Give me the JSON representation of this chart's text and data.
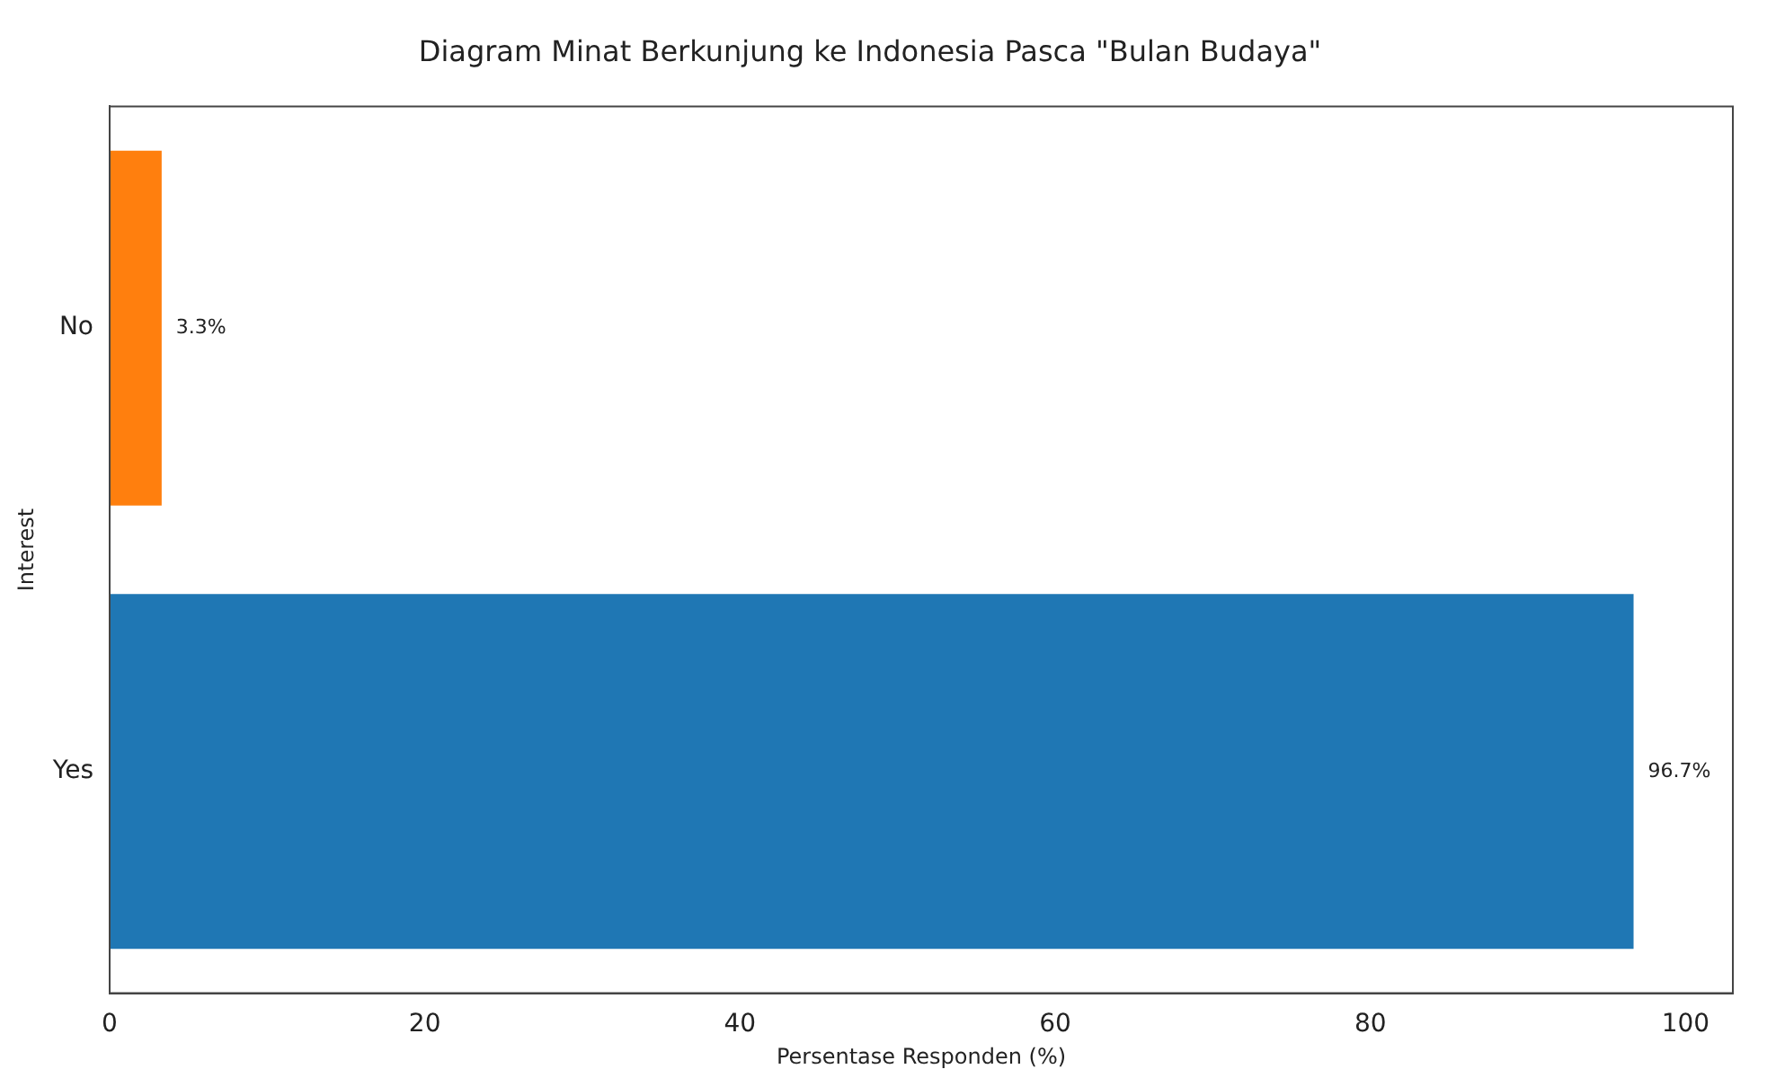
{
  "chart_data": {
    "type": "bar",
    "orientation": "horizontal",
    "title": "Diagram Minat Berkunjung ke Indonesia Pasca \"Bulan Budaya\"",
    "xlabel": "Persentase Responden (%)",
    "ylabel": "Interest",
    "categories": [
      "No",
      "Yes"
    ],
    "values": [
      3.3,
      96.7
    ],
    "colors": [
      "#ff7f0e",
      "#1f77b4"
    ],
    "value_labels": [
      "3.3%",
      "96.7%"
    ],
    "xlim": [
      0,
      103
    ],
    "xticks": [
      0,
      20,
      40,
      60,
      80,
      100
    ],
    "grid": false,
    "legend": false
  }
}
